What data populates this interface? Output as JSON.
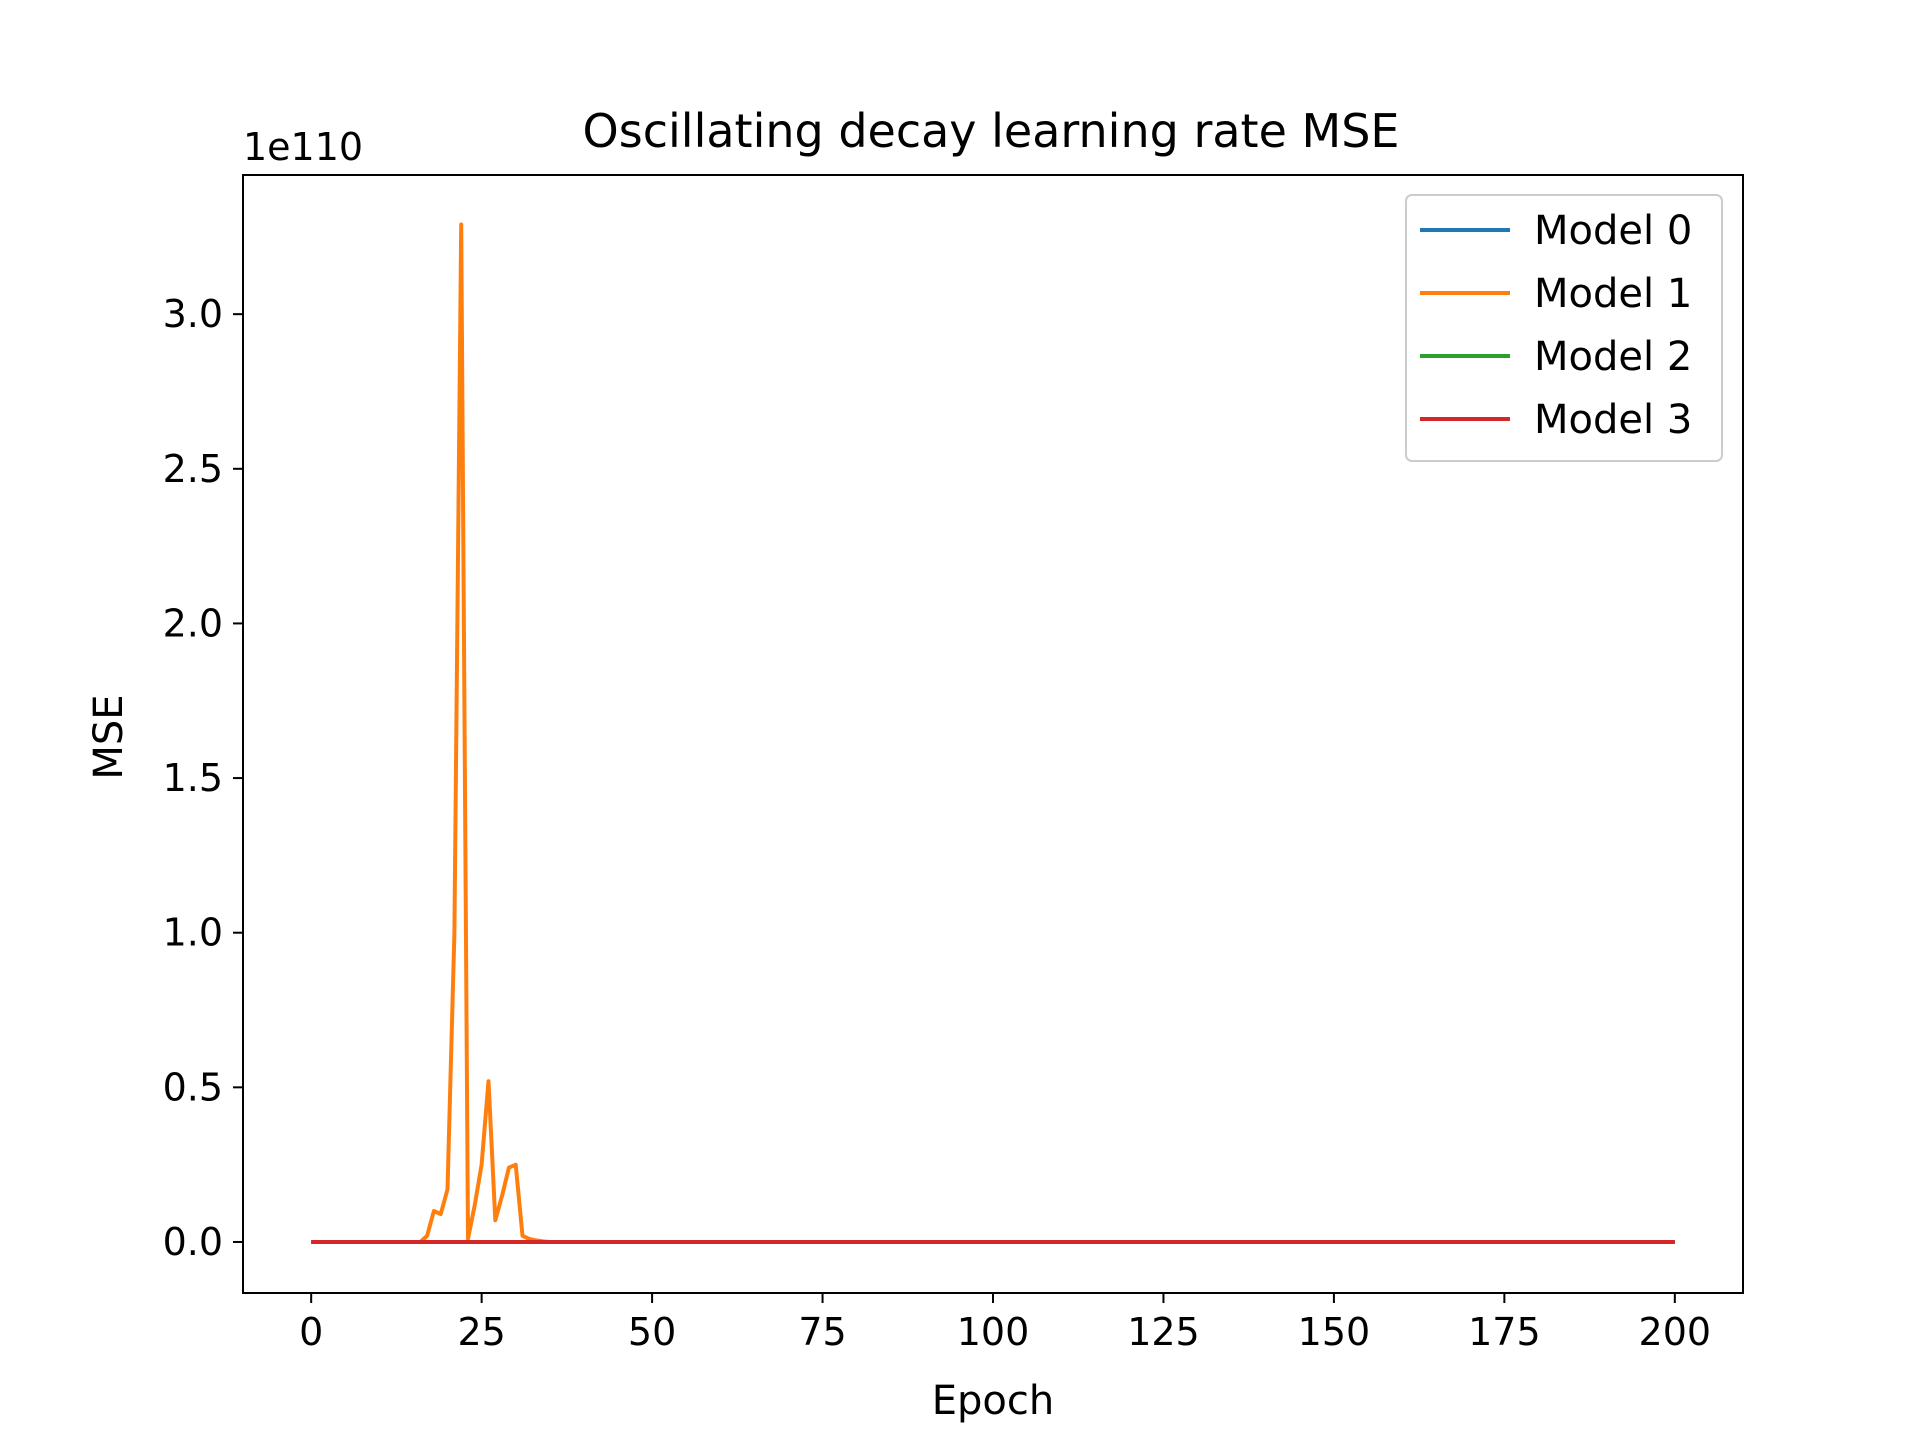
{
  "chart_data": {
    "type": "line",
    "title": "Oscillating decay learning rate MSE",
    "xlabel": "Epoch",
    "ylabel": "MSE",
    "y_offset_label": "1e110",
    "y_scale_exponent": 110,
    "xlim": [
      -10,
      210
    ],
    "ylim": [
      -0.165,
      3.45
    ],
    "xticks": [
      0,
      25,
      50,
      75,
      100,
      125,
      150,
      175,
      200
    ],
    "xtick_labels": [
      "0",
      "25",
      "50",
      "75",
      "100",
      "125",
      "150",
      "175",
      "200"
    ],
    "yticks": [
      0.0,
      0.5,
      1.0,
      1.5,
      2.0,
      2.5,
      3.0
    ],
    "ytick_labels": [
      "0.0",
      "0.5",
      "1.0",
      "1.5",
      "2.0",
      "2.5",
      "3.0"
    ],
    "grid": false,
    "legend_position": "top-right",
    "series": [
      {
        "name": "Model 0",
        "color": "#1f77b4",
        "x": [
          0,
          200
        ],
        "y": [
          0,
          0
        ]
      },
      {
        "name": "Model 1",
        "color": "#ff7f0e",
        "x": [
          0,
          16,
          17,
          18,
          19,
          20,
          21,
          22,
          23,
          24,
          25,
          26,
          27,
          28,
          29,
          30,
          31,
          32,
          33,
          34,
          35,
          40,
          200
        ],
        "y": [
          0,
          0,
          0.02,
          0.1,
          0.09,
          0.17,
          1.0,
          3.29,
          0.01,
          0.12,
          0.25,
          0.52,
          0.07,
          0.15,
          0.24,
          0.25,
          0.02,
          0.01,
          0.005,
          0.002,
          0.0,
          0.0,
          0.0
        ]
      },
      {
        "name": "Model 2",
        "color": "#2ca02c",
        "x": [
          0,
          200
        ],
        "y": [
          0,
          0
        ]
      },
      {
        "name": "Model 3",
        "color": "#d62728",
        "x": [
          0,
          200
        ],
        "y": [
          0,
          0
        ]
      }
    ]
  }
}
